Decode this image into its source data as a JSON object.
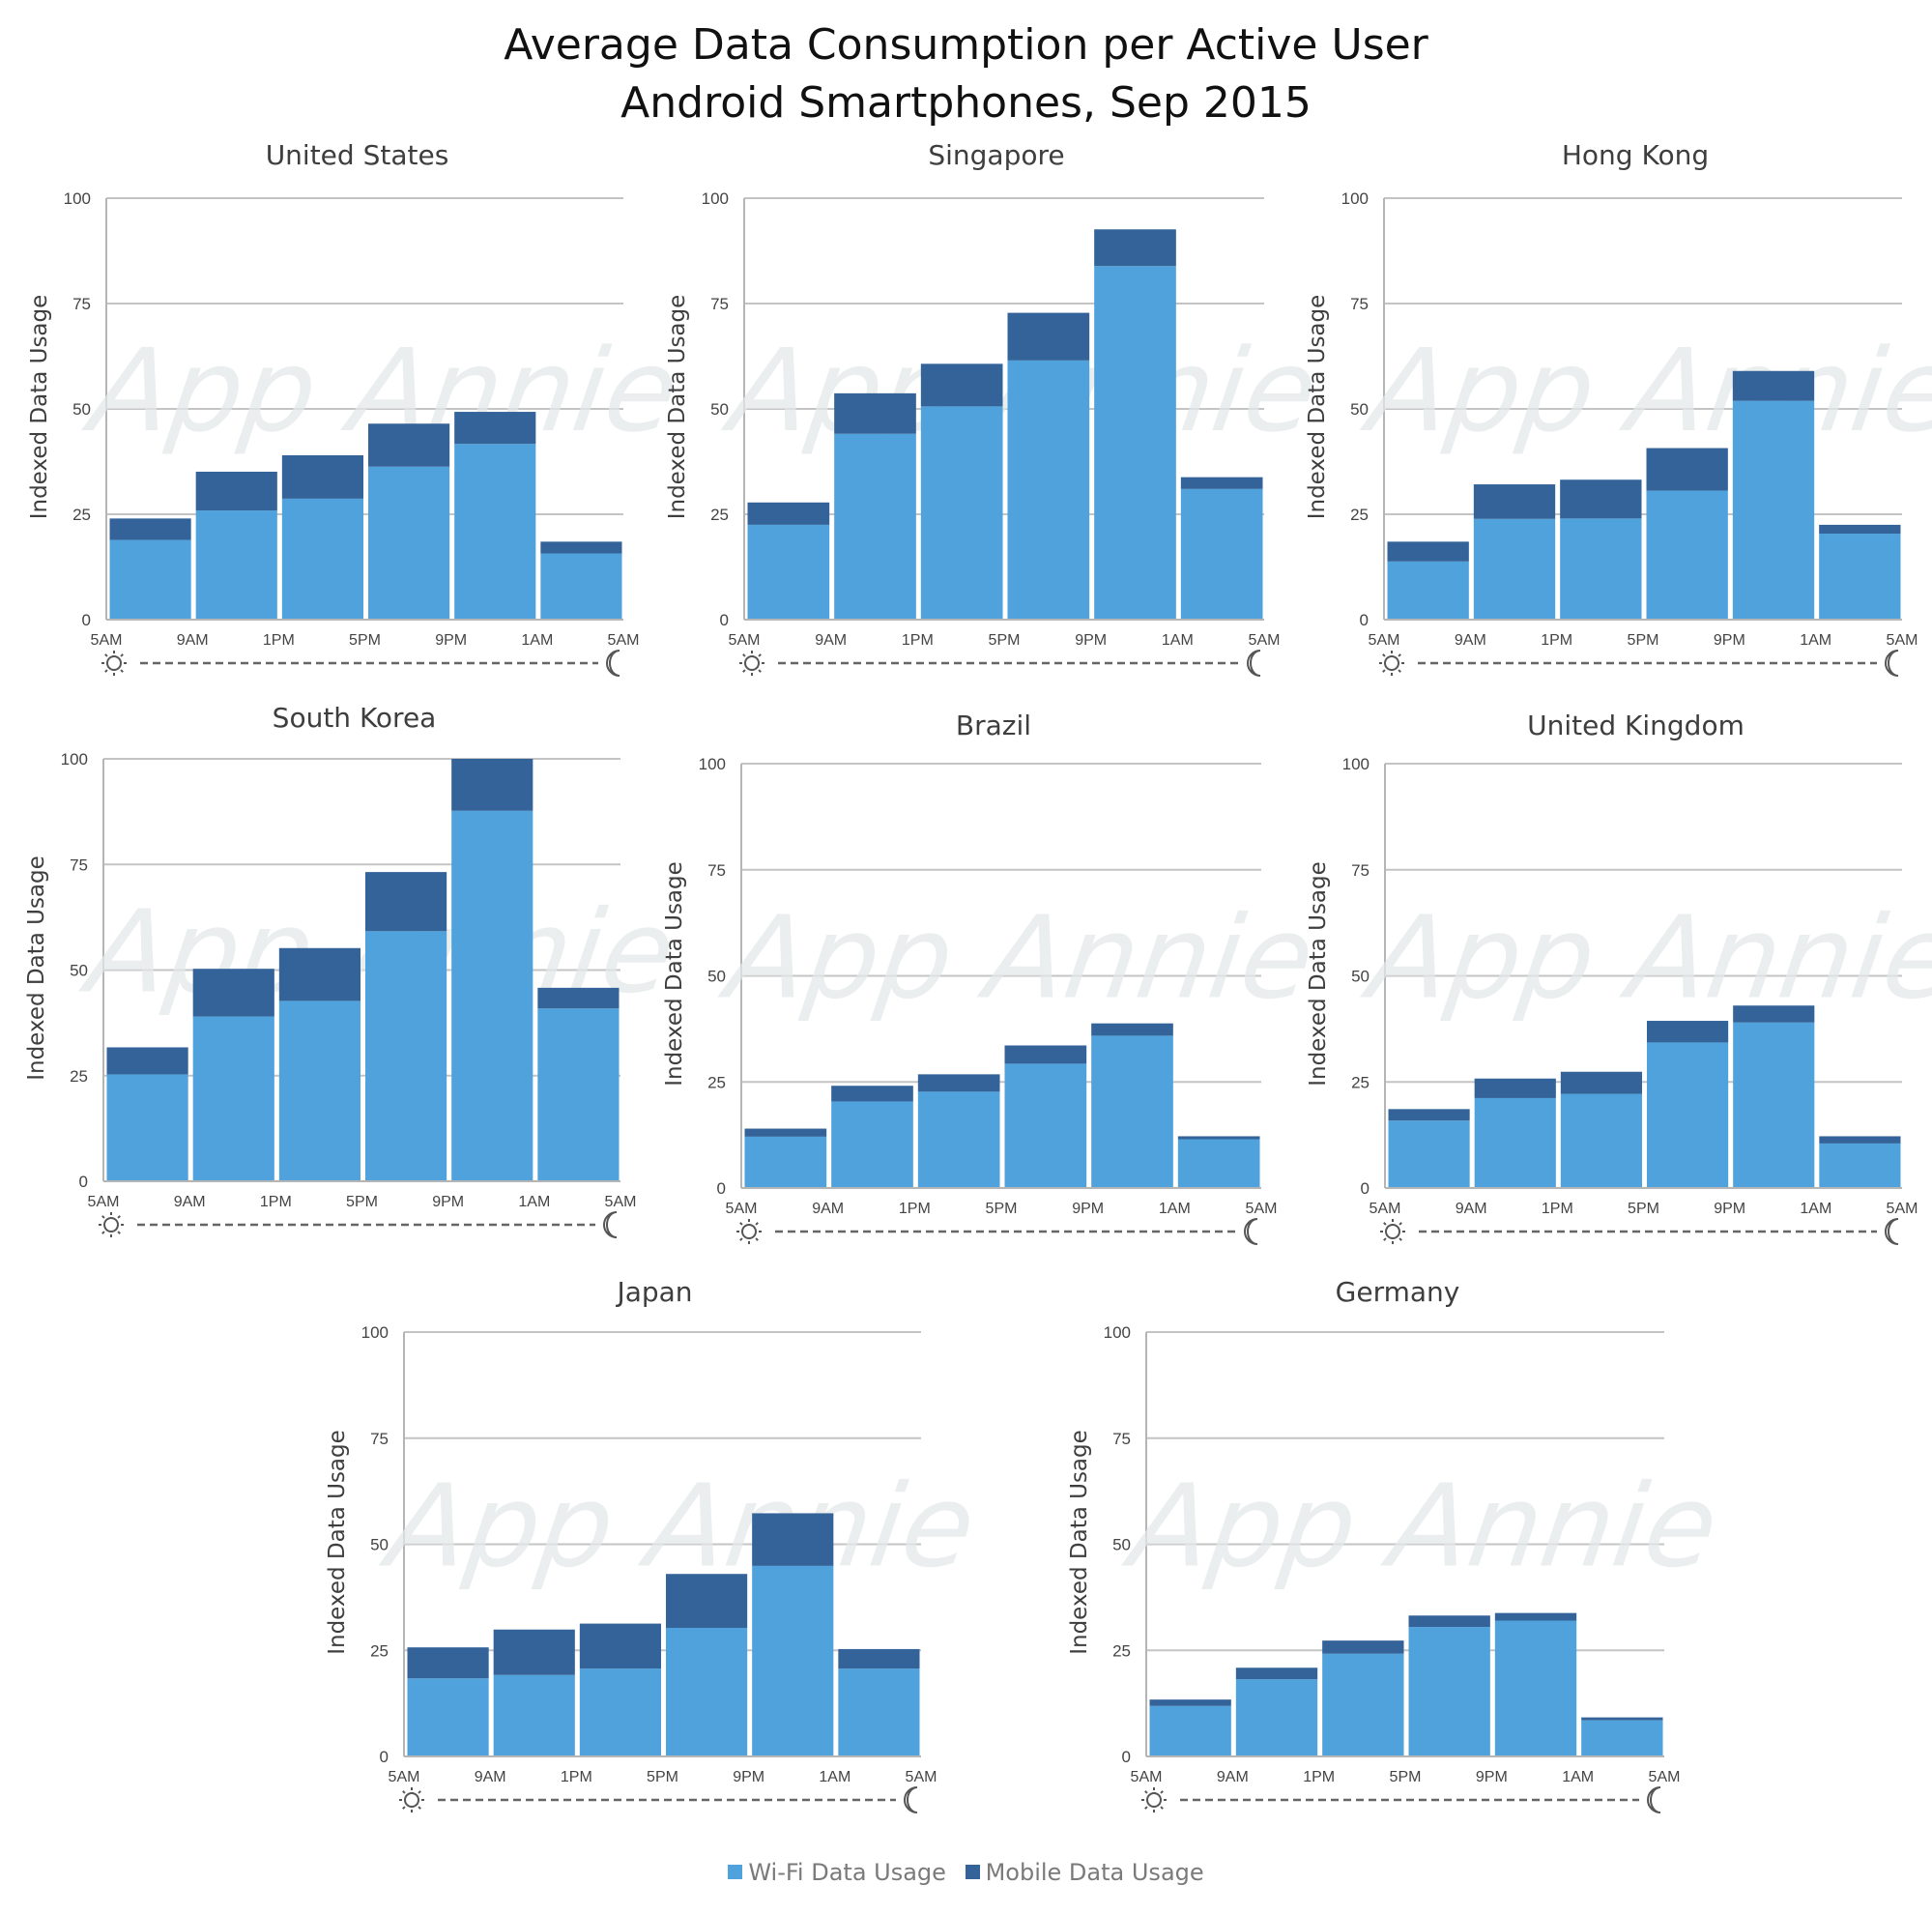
{
  "title": {
    "line1": "Average Data Consumption per Active User",
    "line2": "Android Smartphones, Sep 2015"
  },
  "legend": [
    {
      "label": "Wi-Fi Data Usage",
      "color": "#4fa2dc"
    },
    {
      "label": "Mobile Data Usage",
      "color": "#336399"
    }
  ],
  "watermark": "App Annie",
  "chart_data": [
    {
      "type": "bar",
      "stacked": true,
      "title": "United States",
      "ylabel": "Indexed Data Usage",
      "ylim": [
        0,
        100
      ],
      "yticks": [
        0,
        25,
        50,
        75,
        100
      ],
      "xticks": [
        "5AM",
        "9AM",
        "1PM",
        "5PM",
        "9PM",
        "1AM",
        "5AM"
      ],
      "categories": [
        "5AM-9AM",
        "9AM-1PM",
        "1PM-5PM",
        "5PM-9PM",
        "9PM-1AM",
        "1AM-5AM"
      ],
      "series": [
        {
          "name": "Wi-Fi Data Usage",
          "values": [
            18.9,
            25.9,
            28.7,
            36.3,
            41.7,
            15.7
          ]
        },
        {
          "name": "Mobile Data Usage",
          "values": [
            5.1,
            9.2,
            10.3,
            10.2,
            7.6,
            2.8
          ]
        }
      ]
    },
    {
      "type": "bar",
      "stacked": true,
      "title": "Singapore",
      "ylabel": "Indexed Data Usage",
      "ylim": [
        0,
        100
      ],
      "yticks": [
        0,
        25,
        50,
        75,
        100
      ],
      "xticks": [
        "5AM",
        "9AM",
        "1PM",
        "5PM",
        "9PM",
        "1AM",
        "5AM"
      ],
      "categories": [
        "5AM-9AM",
        "9AM-1PM",
        "1PM-5PM",
        "5PM-9PM",
        "9PM-1AM",
        "1AM-5AM"
      ],
      "series": [
        {
          "name": "Wi-Fi Data Usage",
          "values": [
            22.5,
            44.1,
            50.6,
            61.5,
            83.9,
            31.0
          ]
        },
        {
          "name": "Mobile Data Usage",
          "values": [
            5.3,
            9.6,
            10.1,
            11.3,
            8.7,
            2.8
          ]
        }
      ]
    },
    {
      "type": "bar",
      "stacked": true,
      "title": "Hong Kong",
      "ylabel": "Indexed Data Usage",
      "ylim": [
        0,
        100
      ],
      "yticks": [
        0,
        25,
        50,
        75,
        100
      ],
      "xticks": [
        "5AM",
        "9AM",
        "1PM",
        "5PM",
        "9PM",
        "1AM",
        "5AM"
      ],
      "categories": [
        "5AM-9AM",
        "9AM-1PM",
        "1PM-5PM",
        "5PM-9PM",
        "9PM-1AM",
        "1AM-5AM"
      ],
      "series": [
        {
          "name": "Wi-Fi Data Usage",
          "values": [
            13.8,
            23.9,
            24.0,
            30.6,
            51.9,
            20.4
          ]
        },
        {
          "name": "Mobile Data Usage",
          "values": [
            4.7,
            8.2,
            9.2,
            10.1,
            7.1,
            2.1
          ]
        }
      ]
    },
    {
      "type": "bar",
      "stacked": true,
      "title": "South Korea",
      "ylabel": "Indexed Data Usage",
      "ylim": [
        0,
        100
      ],
      "yticks": [
        0,
        25,
        50,
        75,
        100
      ],
      "xticks": [
        "5AM",
        "9AM",
        "1PM",
        "5PM",
        "9PM",
        "1AM",
        "5AM"
      ],
      "categories": [
        "5AM-9AM",
        "9AM-1PM",
        "1PM-5PM",
        "5PM-9PM",
        "9PM-1AM",
        "1AM-5AM"
      ],
      "series": [
        {
          "name": "Wi-Fi Data Usage",
          "values": [
            25.3,
            39.0,
            42.7,
            59.2,
            87.7,
            40.9
          ]
        },
        {
          "name": "Mobile Data Usage",
          "values": [
            6.4,
            11.3,
            12.5,
            14.0,
            12.3,
            4.9
          ]
        }
      ]
    },
    {
      "type": "bar",
      "stacked": true,
      "title": "Brazil",
      "ylabel": "Indexed Data Usage",
      "ylim": [
        0,
        100
      ],
      "yticks": [
        0,
        25,
        50,
        75,
        100
      ],
      "xticks": [
        "5AM",
        "9AM",
        "1PM",
        "5PM",
        "9PM",
        "1AM",
        "5AM"
      ],
      "categories": [
        "5AM-9AM",
        "9AM-1PM",
        "1PM-5PM",
        "5PM-9PM",
        "9PM-1AM",
        "1AM-5AM"
      ],
      "series": [
        {
          "name": "Wi-Fi Data Usage",
          "values": [
            12.1,
            20.4,
            22.7,
            29.3,
            35.9,
            11.5
          ]
        },
        {
          "name": "Mobile Data Usage",
          "values": [
            1.9,
            3.7,
            4.1,
            4.3,
            2.9,
            0.7
          ]
        }
      ]
    },
    {
      "type": "bar",
      "stacked": true,
      "title": "United Kingdom",
      "ylabel": "Indexed Data Usage",
      "ylim": [
        0,
        100
      ],
      "yticks": [
        0,
        25,
        50,
        75,
        100
      ],
      "xticks": [
        "5AM",
        "9AM",
        "1PM",
        "5PM",
        "9PM",
        "1AM",
        "5AM"
      ],
      "categories": [
        "5AM-9AM",
        "9AM-1PM",
        "1PM-5PM",
        "5PM-9PM",
        "9PM-1AM",
        "1AM-5AM"
      ],
      "series": [
        {
          "name": "Wi-Fi Data Usage",
          "values": [
            15.9,
            21.2,
            22.2,
            34.3,
            39.0,
            10.5
          ]
        },
        {
          "name": "Mobile Data Usage",
          "values": [
            2.7,
            4.6,
            5.2,
            5.1,
            4.0,
            1.7
          ]
        }
      ]
    },
    {
      "type": "bar",
      "stacked": true,
      "title": "Japan",
      "ylabel": "Indexed Data Usage",
      "ylim": [
        0,
        100
      ],
      "yticks": [
        0,
        25,
        50,
        75,
        100
      ],
      "xticks": [
        "5AM",
        "9AM",
        "1PM",
        "5PM",
        "9PM",
        "1AM",
        "5AM"
      ],
      "categories": [
        "5AM-9AM",
        "9AM-1PM",
        "1PM-5PM",
        "5PM-9PM",
        "9PM-1AM",
        "1AM-5AM"
      ],
      "series": [
        {
          "name": "Wi-Fi Data Usage",
          "values": [
            18.4,
            19.2,
            20.7,
            30.3,
            44.9,
            20.7
          ]
        },
        {
          "name": "Mobile Data Usage",
          "values": [
            7.3,
            10.7,
            10.6,
            12.7,
            12.4,
            4.6
          ]
        }
      ]
    },
    {
      "type": "bar",
      "stacked": true,
      "title": "Germany",
      "ylabel": "Indexed Data Usage",
      "ylim": [
        0,
        100
      ],
      "yticks": [
        0,
        25,
        50,
        75,
        100
      ],
      "xticks": [
        "5AM",
        "9AM",
        "1PM",
        "5PM",
        "9PM",
        "1AM",
        "5AM"
      ],
      "categories": [
        "5AM-9AM",
        "9AM-1PM",
        "1PM-5PM",
        "5PM-9PM",
        "9PM-1AM",
        "1AM-5AM"
      ],
      "series": [
        {
          "name": "Wi-Fi Data Usage",
          "values": [
            11.9,
            18.2,
            24.2,
            30.5,
            32.0,
            8.5
          ]
        },
        {
          "name": "Mobile Data Usage",
          "values": [
            1.5,
            2.7,
            3.1,
            2.7,
            1.8,
            0.7
          ]
        }
      ]
    }
  ]
}
